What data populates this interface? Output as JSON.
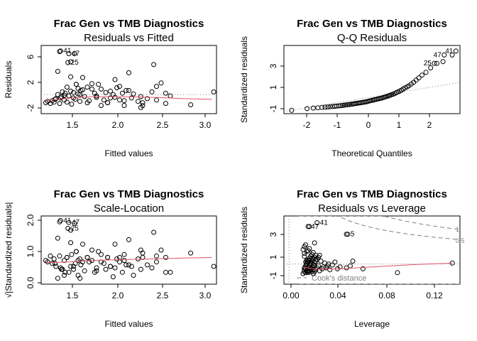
{
  "page_title": "Frac Gen vs TMB Diagnostics",
  "colors": {
    "points": "#000000",
    "smoother": "#DF536B",
    "reference": "#808080"
  },
  "chart_data": [
    {
      "type": "scatter",
      "title": "Frac Gen vs TMB Diagnostics",
      "subtitle": "Residuals vs Fitted",
      "xlabel": "Fitted values",
      "ylabel": "Residuals",
      "xlim": [
        1.2,
        3.1
      ],
      "ylim": [
        -2.8,
        7.2
      ],
      "xticks": [
        "1.5",
        "2.0",
        "2.5",
        "3.0"
      ],
      "yticks": [
        "-2",
        "2",
        "6"
      ],
      "grid": false,
      "reference_line": 0,
      "point_labels": [
        "41",
        "47",
        "25"
      ],
      "points": {
        "x": [
          1.25,
          1.27,
          1.3,
          1.32,
          1.34,
          1.36,
          1.38,
          1.4,
          1.41,
          1.43,
          1.45,
          1.46,
          1.48,
          1.5,
          1.52,
          1.53,
          1.55,
          1.57,
          1.58,
          1.6,
          1.62,
          1.63,
          1.65,
          1.67,
          1.7,
          1.72,
          1.75,
          1.78,
          1.8,
          1.82,
          1.85,
          1.88,
          1.9,
          1.92,
          1.95,
          1.98,
          2.0,
          2.02,
          2.05,
          2.08,
          2.1,
          2.12,
          2.15,
          2.18,
          2.2,
          2.25,
          2.28,
          2.3,
          2.35,
          2.4,
          2.42,
          2.45,
          2.5,
          2.55,
          2.6,
          2.82,
          3.07,
          1.38,
          1.52,
          1.58,
          1.65,
          1.75,
          1.95,
          2.0,
          2.1,
          2.15,
          2.28,
          2.45,
          1.42,
          1.48,
          1.55,
          1.62,
          1.7,
          1.85,
          1.92,
          2.05,
          2.3,
          2.55,
          1.35,
          1.45,
          1.6,
          1.8,
          1.4,
          1.56,
          1.52
        ],
        "y": [
          -1.2,
          -1.0,
          -1.3,
          -0.9,
          -1.1,
          -0.6,
          0.0,
          -1.3,
          -0.5,
          0.4,
          -0.8,
          0.2,
          -1.1,
          -0.2,
          0.5,
          -1.4,
          0.3,
          -0.7,
          1.5,
          0.1,
          -1.0,
          0.6,
          2.5,
          -0.3,
          1.1,
          -0.9,
          0.8,
          0.2,
          -0.4,
          1.5,
          -1.6,
          -0.8,
          0.3,
          -1.2,
          0.5,
          0.0,
          -0.4,
          1.0,
          -0.8,
          0.2,
          -1.6,
          0.6,
          3.2,
          -0.5,
          0.1,
          -1.0,
          -1.9,
          -1.2,
          -0.6,
          0.4,
          4.4,
          -0.8,
          1.7,
          -1.3,
          -0.2,
          -1.5,
          0.4,
          3.4,
          2.6,
          1.5,
          0.7,
          1.6,
          -0.5,
          2.2,
          -0.9,
          0.6,
          -0.3,
          1.2,
          -0.3,
          1.1,
          -0.5,
          0.0,
          -1.2,
          0.8,
          -1.2,
          1.2,
          -1.6,
          0.2,
          -0.7,
          -0.1,
          0.9,
          -0.2,
          6.3,
          6.0,
          4.8
        ]
      },
      "smoother": {
        "x": [
          1.25,
          1.5,
          1.75,
          2.0,
          2.25,
          2.5,
          2.75,
          3.05
        ],
        "y": [
          -0.9,
          -0.55,
          -0.3,
          -0.3,
          -0.35,
          -0.45,
          -0.6,
          -0.7
        ]
      }
    },
    {
      "type": "scatter",
      "title": "Frac Gen vs TMB Diagnostics",
      "subtitle": "Q-Q Residuals",
      "xlabel": "Theoretical Quantiles",
      "ylabel": "Standardized residuals",
      "xlim": [
        -2.85,
        2.85
      ],
      "ylim": [
        -1.5,
        4.6
      ],
      "xticks": [
        "-2",
        "-1",
        "0",
        "1",
        "2"
      ],
      "yticks": [
        "-1",
        "1",
        "3"
      ],
      "grid": false,
      "point_labels": [
        "41",
        "47",
        "25"
      ],
      "points": {
        "x": [
          -2.6,
          -2.1,
          -1.9,
          -1.75,
          -1.62,
          -1.52,
          -1.43,
          -1.35,
          -1.27,
          -1.2,
          -1.14,
          -1.07,
          -1.01,
          -0.95,
          -0.9,
          -0.85,
          -0.79,
          -0.74,
          -0.69,
          -0.64,
          -0.59,
          -0.55,
          -0.5,
          -0.45,
          -0.41,
          -0.36,
          -0.32,
          -0.27,
          -0.23,
          -0.18,
          -0.14,
          -0.09,
          -0.05,
          0.0,
          0.05,
          0.09,
          0.14,
          0.18,
          0.23,
          0.27,
          0.32,
          0.36,
          0.41,
          0.45,
          0.5,
          0.55,
          0.59,
          0.64,
          0.69,
          0.74,
          0.79,
          0.85,
          0.9,
          0.95,
          1.01,
          1.07,
          1.14,
          1.2,
          1.27,
          1.35,
          1.43,
          1.52,
          1.62,
          1.75,
          1.9,
          2.1,
          2.3,
          2.6
        ],
        "y": [
          -1.2,
          -1.05,
          -1.0,
          -0.97,
          -0.95,
          -0.92,
          -0.9,
          -0.88,
          -0.86,
          -0.84,
          -0.82,
          -0.8,
          -0.78,
          -0.76,
          -0.74,
          -0.72,
          -0.7,
          -0.68,
          -0.66,
          -0.64,
          -0.62,
          -0.6,
          -0.58,
          -0.56,
          -0.54,
          -0.52,
          -0.5,
          -0.48,
          -0.46,
          -0.43,
          -0.4,
          -0.37,
          -0.34,
          -0.31,
          -0.28,
          -0.25,
          -0.22,
          -0.19,
          -0.16,
          -0.13,
          -0.1,
          -0.06,
          -0.02,
          0.02,
          0.06,
          0.1,
          0.15,
          0.2,
          0.25,
          0.31,
          0.38,
          0.45,
          0.52,
          0.6,
          0.7,
          0.8,
          0.9,
          1.0,
          1.15,
          1.3,
          1.5,
          1.7,
          1.95,
          2.2,
          2.6,
          3.0,
          3.15,
          3.75
        ]
      },
      "reference_line": {
        "x": [
          -2.85,
          2.85
        ],
        "y": [
          -1.3,
          1.3
        ]
      }
    },
    {
      "type": "scatter",
      "title": "Frac Gen vs TMB Diagnostics",
      "subtitle": "Scale-Location",
      "xlabel": "Fitted values",
      "ylabel": "√|Standardized residuals|",
      "xlim": [
        1.2,
        3.1
      ],
      "ylim": [
        -0.1,
        2.2
      ],
      "xticks": [
        "1.5",
        "2.0",
        "2.5",
        "3.0"
      ],
      "yticks": [
        "0.0",
        "1.0",
        "2.0"
      ],
      "grid": false,
      "point_labels": [
        "41",
        "47",
        "25"
      ],
      "points": {
        "x": [
          1.25,
          1.27,
          1.3,
          1.32,
          1.34,
          1.36,
          1.38,
          1.4,
          1.41,
          1.43,
          1.45,
          1.46,
          1.48,
          1.5,
          1.52,
          1.53,
          1.55,
          1.57,
          1.58,
          1.6,
          1.62,
          1.63,
          1.65,
          1.67,
          1.7,
          1.72,
          1.75,
          1.78,
          1.8,
          1.82,
          1.85,
          1.88,
          1.9,
          1.92,
          1.95,
          1.98,
          2.0,
          2.02,
          2.05,
          2.08,
          2.1,
          2.12,
          2.15,
          2.18,
          2.2,
          2.25,
          2.28,
          2.3,
          2.35,
          2.4,
          2.42,
          2.45,
          2.5,
          2.55,
          2.6,
          2.82,
          3.07,
          1.38,
          1.52,
          1.58,
          1.65,
          1.75,
          1.95,
          2.0,
          2.1,
          2.15,
          2.28,
          2.45,
          1.42,
          1.48,
          1.55,
          1.62,
          1.7,
          1.85,
          1.92,
          2.05,
          2.3,
          2.55,
          1.35,
          1.45,
          1.6,
          1.8,
          1.4,
          1.56,
          1.52
        ],
        "y": [
          0.7,
          0.65,
          0.85,
          0.6,
          0.75,
          0.5,
          0.1,
          0.85,
          0.45,
          0.4,
          0.7,
          0.3,
          0.8,
          0.3,
          0.5,
          0.9,
          0.4,
          0.6,
          1.0,
          0.2,
          0.75,
          0.55,
          1.25,
          0.35,
          0.8,
          0.65,
          0.7,
          0.3,
          0.45,
          1.0,
          0.9,
          0.6,
          0.4,
          0.8,
          0.5,
          0.15,
          0.45,
          0.75,
          0.65,
          0.3,
          0.9,
          0.55,
          1.4,
          0.5,
          0.2,
          0.75,
          1.05,
          0.8,
          0.55,
          0.45,
          1.65,
          0.65,
          1.05,
          0.8,
          0.3,
          0.95,
          0.5,
          1.45,
          1.3,
          1.0,
          0.65,
          1.05,
          0.5,
          1.25,
          0.7,
          0.55,
          0.4,
          0.85,
          0.4,
          0.8,
          0.5,
          0.1,
          0.8,
          0.65,
          0.8,
          0.8,
          0.95,
          0.3,
          0.6,
          0.2,
          0.7,
          0.35,
          2.0,
          1.95,
          1.72
        ]
      },
      "smoother": {
        "x": [
          1.25,
          1.5,
          1.75,
          2.0,
          2.25,
          2.5,
          2.75,
          3.05
        ],
        "y": [
          0.62,
          0.65,
          0.7,
          0.72,
          0.74,
          0.76,
          0.78,
          0.8
        ]
      }
    },
    {
      "type": "scatter",
      "title": "Frac Gen vs TMB Diagnostics",
      "subtitle": "Residuals vs Leverage",
      "xlabel": "Leverage",
      "ylabel": "Standardized residuals",
      "xlim": [
        -0.004,
        0.134
      ],
      "ylim": [
        -2.1,
        5.0
      ],
      "xticks": [
        "0.00",
        "0.04",
        "0.08",
        "0.12"
      ],
      "yticks": [
        "-1",
        "1",
        "3"
      ],
      "grid": false,
      "point_labels": [
        "47",
        "41",
        "5"
      ],
      "legend_text": "Cook's distance",
      "contour_labels": [
        "1",
        "0.5"
      ],
      "points": {
        "x": [
          0.011,
          0.012,
          0.012,
          0.013,
          0.013,
          0.014,
          0.014,
          0.015,
          0.015,
          0.016,
          0.016,
          0.017,
          0.017,
          0.018,
          0.018,
          0.019,
          0.019,
          0.02,
          0.02,
          0.021,
          0.021,
          0.022,
          0.022,
          0.023,
          0.023,
          0.024,
          0.024,
          0.025,
          0.026,
          0.027,
          0.028,
          0.029,
          0.03,
          0.031,
          0.032,
          0.034,
          0.036,
          0.038,
          0.04,
          0.045,
          0.048,
          0.05,
          0.058,
          0.085,
          0.128,
          0.011,
          0.012,
          0.013,
          0.013,
          0.014,
          0.015,
          0.015,
          0.016,
          0.017,
          0.018,
          0.019,
          0.02,
          0.021,
          0.012,
          0.013,
          0.014,
          0.015,
          0.016,
          0.017,
          0.018,
          0.019,
          0.012,
          0.014,
          0.016,
          0.018,
          0.02,
          0.015,
          0.017,
          0.013,
          0.014,
          0.016,
          0.012,
          0.013,
          0.015,
          0.019,
          0.021,
          0.015,
          0.02,
          0.045,
          0.016
        ],
        "y": [
          -1.0,
          -0.8,
          -0.6,
          -0.4,
          -0.2,
          0.0,
          0.2,
          -0.9,
          0.4,
          -0.7,
          0.6,
          -0.5,
          0.8,
          -0.3,
          1.0,
          -0.1,
          1.2,
          0.1,
          -0.8,
          0.3,
          -0.6,
          0.5,
          -0.4,
          0.7,
          -0.2,
          0.9,
          -0.7,
          0.3,
          -0.5,
          -0.3,
          0.1,
          -0.4,
          -0.2,
          0.0,
          -0.6,
          -0.1,
          0.2,
          -0.5,
          -0.3,
          -0.4,
          -0.2,
          0.3,
          -0.5,
          -0.9,
          0.1,
          1.5,
          1.8,
          2.0,
          -0.9,
          -0.7,
          -0.5,
          -0.3,
          -0.1,
          0.1,
          0.3,
          0.5,
          0.7,
          0.9,
          -0.4,
          -0.2,
          0.0,
          0.2,
          0.4,
          -0.6,
          -0.8,
          -1.0,
          1.1,
          1.3,
          1.6,
          0.6,
          -0.2,
          -0.7,
          0.0,
          -0.5,
          0.4,
          -0.3,
          0.8,
          0.2,
          1.4,
          -0.6,
          0.5,
          -0.8,
          2.2,
          3.1,
          3.9
        ]
      },
      "smoother": {
        "x": [
          0.011,
          0.02,
          0.04,
          0.06,
          0.08,
          0.1,
          0.128
        ],
        "y": [
          -0.3,
          -0.55,
          -0.5,
          -0.35,
          -0.2,
          -0.05,
          0.1
        ]
      }
    }
  ]
}
